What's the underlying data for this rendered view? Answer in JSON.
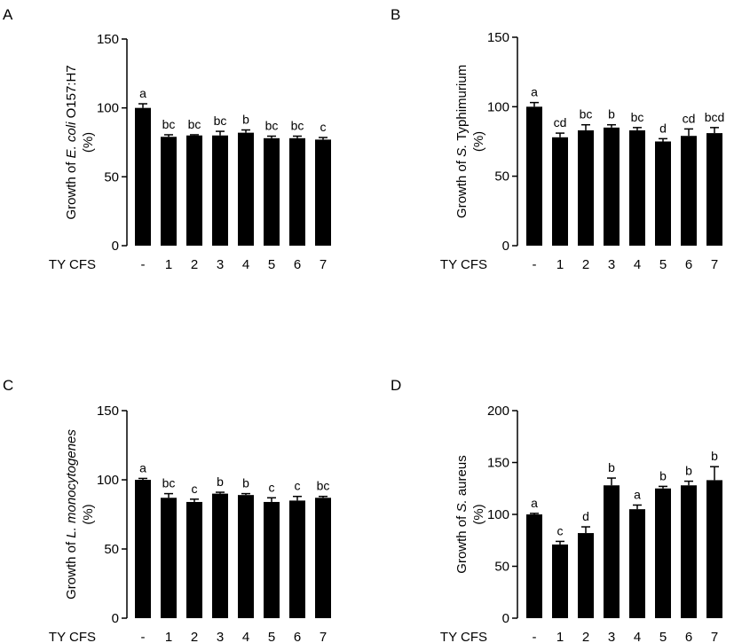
{
  "figure": {
    "panel_letters": [
      "A",
      "B",
      "C",
      "D"
    ],
    "x_prefix_label": "TY CFS"
  },
  "chart_data": [
    {
      "panel": "A",
      "type": "bar",
      "categories": [
        "-",
        "1",
        "2",
        "3",
        "4",
        "5",
        "6",
        "7"
      ],
      "ylabel": {
        "prefix": "Growth of ",
        "italic": "E. coli",
        "suffix": " O157:H7",
        "unit": "(%)"
      },
      "ylim": [
        0,
        150
      ],
      "yticks": [
        0,
        50,
        100,
        150
      ],
      "values": [
        100,
        79,
        80,
        80,
        82,
        78,
        78,
        77
      ],
      "errors": [
        3,
        1.5,
        0.5,
        3,
        2,
        1.5,
        1.5,
        1.5
      ],
      "letters": [
        "a",
        "bc",
        "bc",
        "bc",
        "b",
        "bc",
        "bc",
        "c"
      ],
      "bar_color": "#000000",
      "grid": false
    },
    {
      "panel": "B",
      "type": "bar",
      "categories": [
        "-",
        "1",
        "2",
        "3",
        "4",
        "5",
        "6",
        "7"
      ],
      "ylabel": {
        "prefix": "Growth of ",
        "italic": "S.",
        "suffix": "  Typhimurium",
        "unit": "(%)"
      },
      "ylim": [
        0,
        150
      ],
      "yticks": [
        0,
        50,
        100,
        150
      ],
      "values": [
        100,
        78,
        83,
        85,
        83,
        75,
        79,
        81
      ],
      "errors": [
        3,
        3,
        4,
        2,
        2,
        2,
        5,
        4
      ],
      "letters": [
        "a",
        "cd",
        "bc",
        "b",
        "bc",
        "d",
        "cd",
        "bcd"
      ],
      "bar_color": "#000000",
      "grid": false
    },
    {
      "panel": "C",
      "type": "bar",
      "categories": [
        "-",
        "1",
        "2",
        "3",
        "4",
        "5",
        "6",
        "7"
      ],
      "ylabel": {
        "prefix": "Growth of ",
        "italic": "L. monocytogenes",
        "suffix": "",
        "unit": "(%)"
      },
      "ylim": [
        0,
        150
      ],
      "yticks": [
        0,
        50,
        100,
        150
      ],
      "values": [
        100,
        87,
        84,
        90,
        89,
        84,
        85,
        87
      ],
      "errors": [
        1,
        3,
        2,
        1,
        1,
        3,
        3,
        1
      ],
      "letters": [
        "a",
        "bc",
        "c",
        "b",
        "b",
        "c",
        "c",
        "bc"
      ],
      "bar_color": "#000000",
      "grid": false
    },
    {
      "panel": "D",
      "type": "bar",
      "categories": [
        "-",
        "1",
        "2",
        "3",
        "4",
        "5",
        "6",
        "7"
      ],
      "ylabel": {
        "prefix": "Growth of ",
        "italic": "S.",
        "suffix": "  aureus",
        "unit": "(%)"
      },
      "ylim": [
        0,
        200
      ],
      "yticks": [
        0,
        50,
        100,
        150,
        200
      ],
      "values": [
        100,
        71,
        82,
        128,
        105,
        125,
        128,
        133
      ],
      "errors": [
        1,
        3,
        6,
        7,
        4,
        2,
        4,
        13
      ],
      "letters": [
        "a",
        "c",
        "d",
        "b",
        "a",
        "b",
        "b",
        "b"
      ],
      "bar_color": "#000000",
      "grid": false
    }
  ]
}
